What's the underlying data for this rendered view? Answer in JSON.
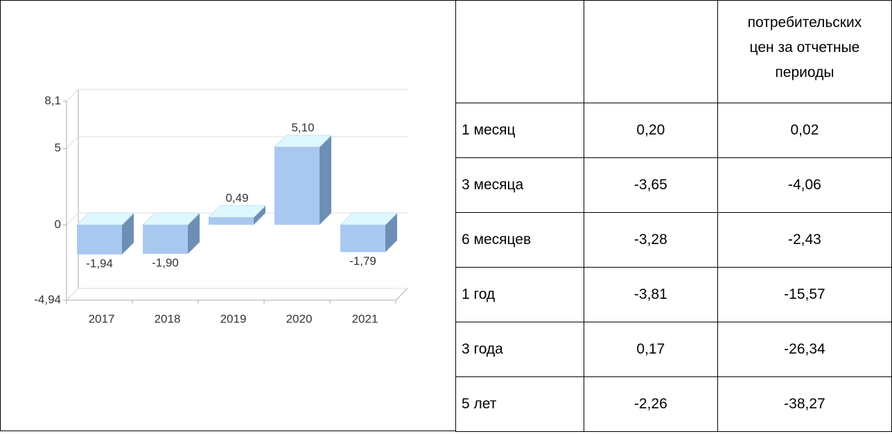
{
  "chart_data": {
    "type": "bar3d",
    "categories": [
      "2017",
      "2018",
      "2019",
      "2020",
      "2021"
    ],
    "values": [
      -1.94,
      -1.9,
      0.49,
      5.1,
      -1.79
    ],
    "value_labels": [
      "-1,94",
      "-1,90",
      "0,49",
      "5,10",
      "-1,79"
    ],
    "color": "#a9c8ef",
    "ylim": [
      -4.94,
      8.1
    ],
    "yticks": [
      {
        "value": -4.94,
        "label": "-4,94"
      },
      0,
      5,
      {
        "value": 8.1,
        "label": "8,1"
      }
    ],
    "grid": true
  },
  "table": {
    "header": [
      "потребительских",
      "цен за отчетные",
      "периоды"
    ],
    "rows": [
      [
        "1 месяц",
        "0,20",
        "0,02"
      ],
      [
        "3 месяца",
        "-3,65",
        "-4,06"
      ],
      [
        "6 месяцев",
        "-3,28",
        "-2,43"
      ],
      [
        "1 год",
        "-3,81",
        "-15,57"
      ],
      [
        "3 года",
        "0,17",
        "-26,34"
      ],
      [
        "5 лет",
        "-2,26",
        "-38,27"
      ]
    ]
  }
}
